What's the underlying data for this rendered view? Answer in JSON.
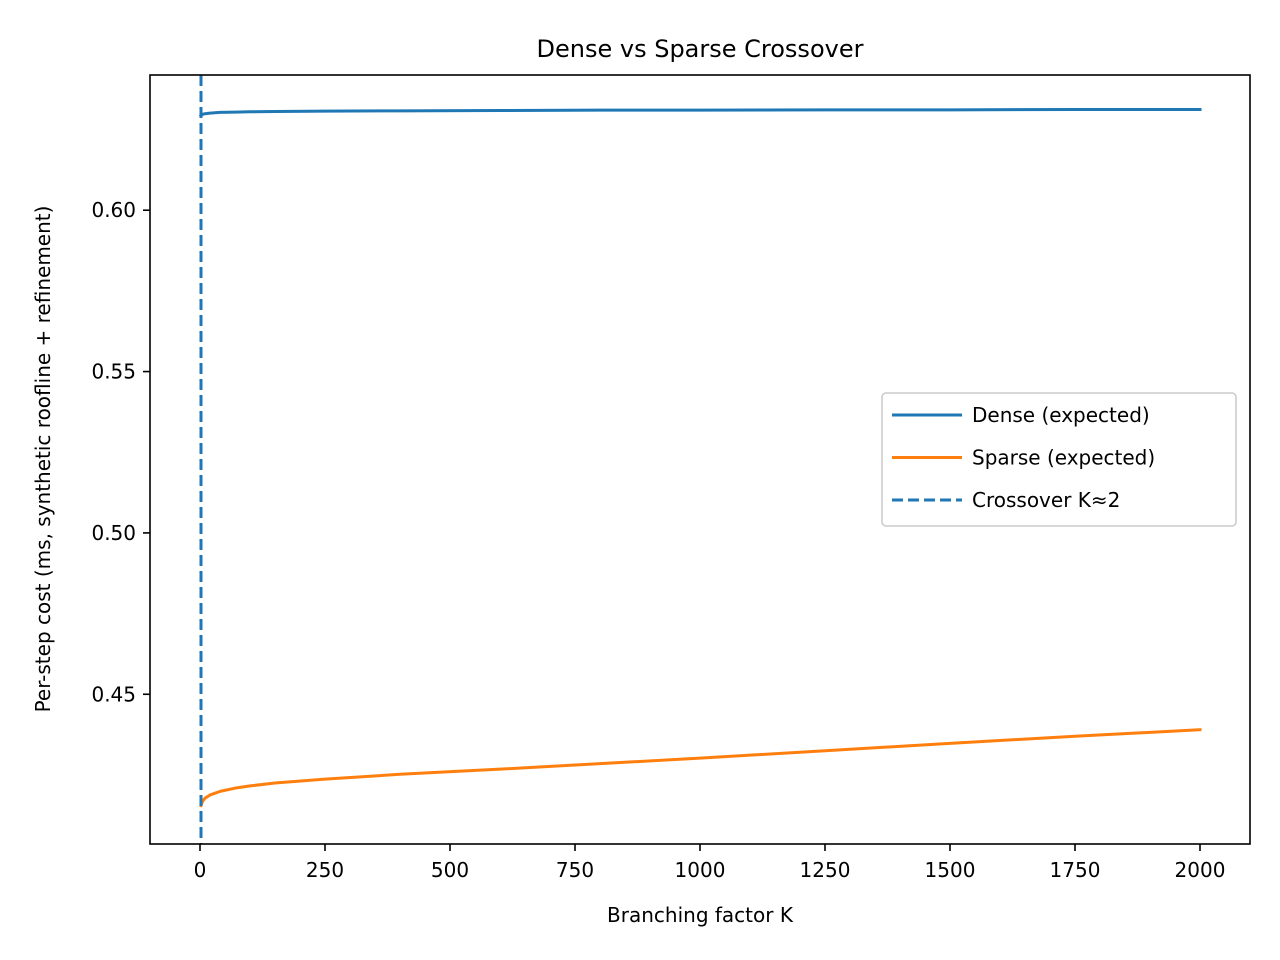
{
  "chart_data": {
    "type": "line",
    "title": "Dense vs Sparse Crossover",
    "xlabel": "Branching factor K",
    "ylabel": "Per-step cost (ms, synthetic roofline + refinement)",
    "xlim": [
      -100,
      2100
    ],
    "ylim": [
      0.4036,
      0.6419
    ],
    "xticks": [
      0,
      250,
      500,
      750,
      1000,
      1250,
      1500,
      1750,
      2000
    ],
    "yticks": [
      0.45,
      0.5,
      0.55,
      0.6
    ],
    "ytick_labels": [
      "0.45",
      "0.50",
      "0.55",
      "0.60"
    ],
    "grid": false,
    "legend_position": "center-right",
    "series": [
      {
        "name": "Dense (expected)",
        "color": "#1f77b4",
        "style": "solid",
        "x": [
          2,
          5,
          10,
          20,
          40,
          70,
          100,
          150,
          250,
          400,
          600,
          800,
          1000,
          1250,
          1500,
          1750,
          2000
        ],
        "y": [
          0.6293,
          0.6297,
          0.6299,
          0.6301,
          0.6303,
          0.6304,
          0.6305,
          0.6306,
          0.6307,
          0.6308,
          0.6309,
          0.631,
          0.631,
          0.6311,
          0.6311,
          0.6312,
          0.6312
        ]
      },
      {
        "name": "Sparse (expected)",
        "color": "#ff7f0e",
        "style": "solid",
        "x": [
          2,
          5,
          10,
          20,
          40,
          70,
          100,
          150,
          250,
          400,
          600,
          800,
          1000,
          1250,
          1500,
          1750,
          2000
        ],
        "y": [
          0.4155,
          0.4168,
          0.4178,
          0.4188,
          0.4199,
          0.4209,
          0.4216,
          0.4225,
          0.4237,
          0.4252,
          0.4268,
          0.4285,
          0.4302,
          0.4325,
          0.4348,
          0.437,
          0.439
        ]
      }
    ],
    "vlines": [
      {
        "name": "Crossover K≈2",
        "x": 2,
        "color": "#1f77b4",
        "style": "dashed"
      }
    ]
  }
}
